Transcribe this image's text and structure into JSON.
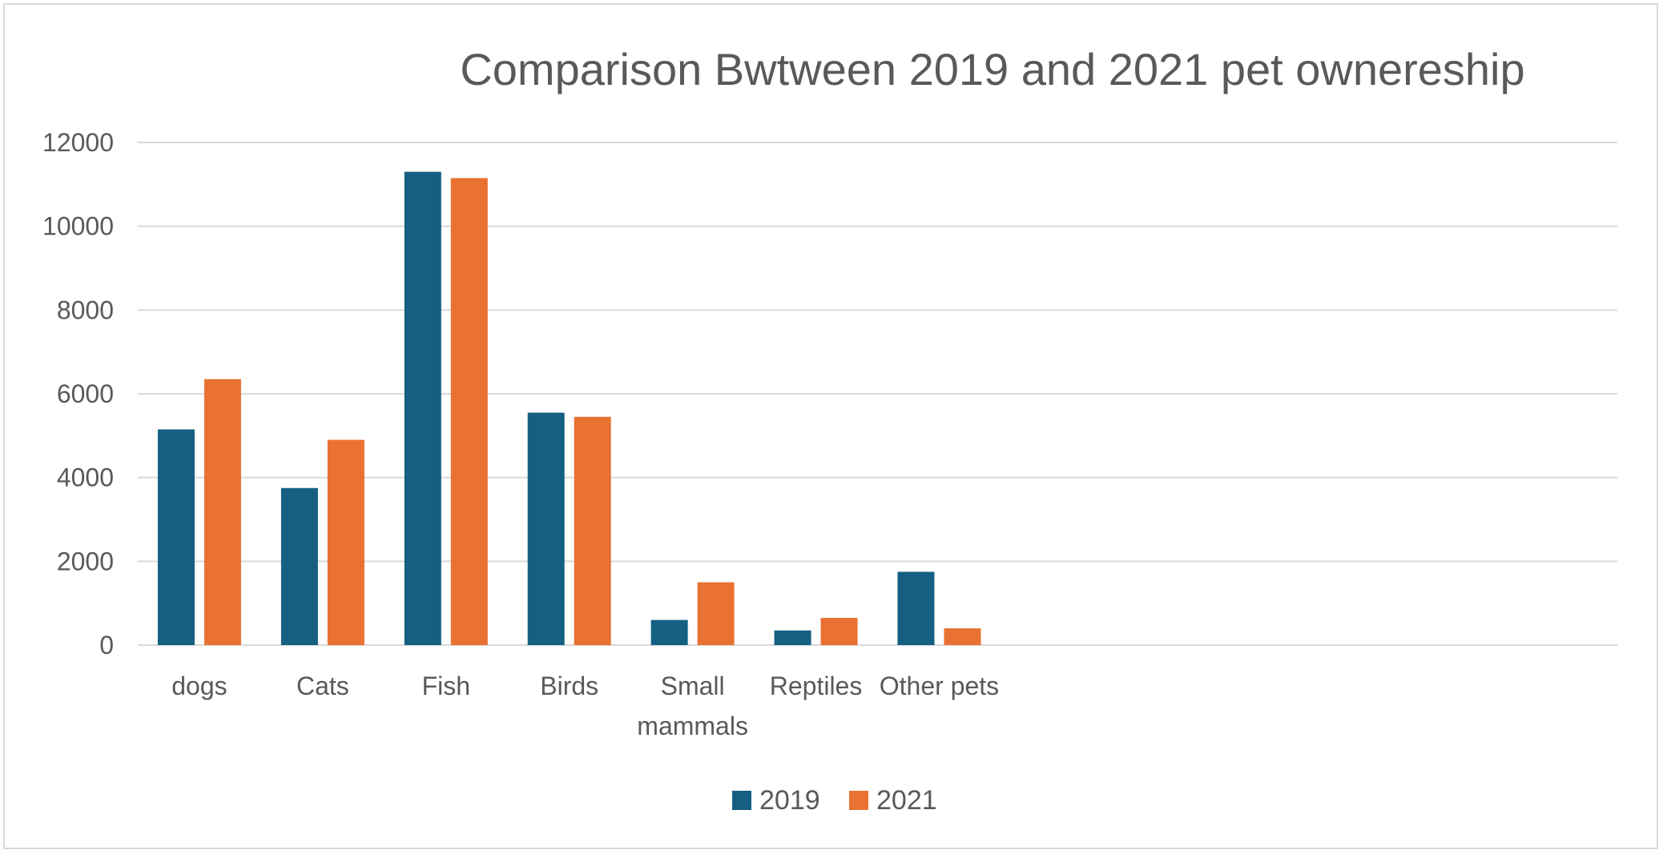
{
  "chart_data": {
    "type": "bar",
    "title": "Comparison Bwtween 2019 and 2021 pet ownereship",
    "xlabel": "",
    "ylabel": "",
    "categories": [
      [
        "dogs"
      ],
      [
        "Cats"
      ],
      [
        "Fish"
      ],
      [
        "Birds"
      ],
      [
        "Small",
        "mammals"
      ],
      [
        "Reptiles"
      ],
      [
        "Other pets"
      ]
    ],
    "series": [
      {
        "name": "2019",
        "color": "#156082",
        "values": [
          5150,
          3750,
          11300,
          5550,
          600,
          350,
          1750
        ]
      },
      {
        "name": "2021",
        "color": "#e97132",
        "values": [
          6350,
          4900,
          11150,
          5450,
          1500,
          650,
          400
        ]
      }
    ],
    "ylim": [
      0,
      12000
    ],
    "yticks": [
      "0",
      "2000",
      "4000",
      "6000",
      "8000",
      "10000",
      "12000"
    ],
    "grid": true,
    "legend_position": "bottom"
  }
}
